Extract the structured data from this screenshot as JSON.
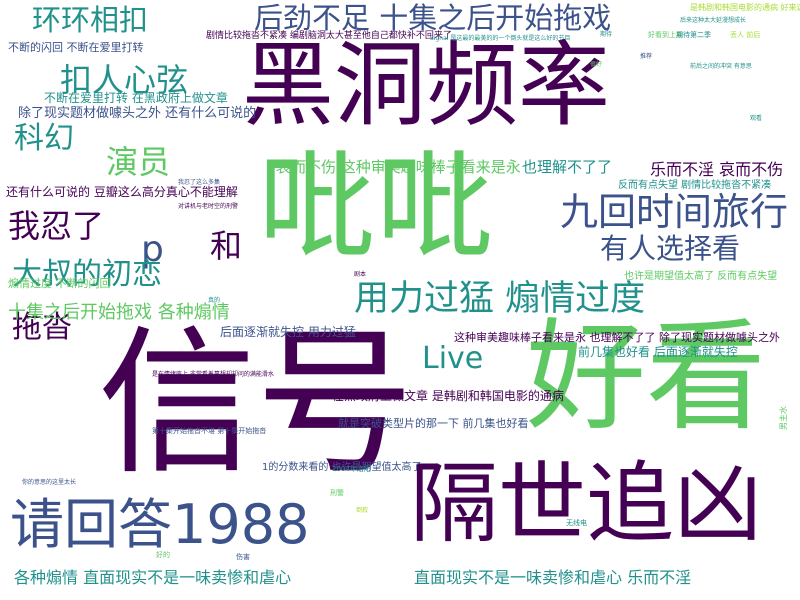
{
  "palette": {
    "purple": "#440154",
    "indigo": "#3b528b",
    "teal": "#21918c",
    "green": "#5ec962",
    "lime": "#aadc32"
  },
  "words": [
    {
      "text": "信号",
      "color": "#440154"
    },
    {
      "text": "好看",
      "color": "#5ec962"
    },
    {
      "text": "黑洞频率",
      "color": "#440154"
    },
    {
      "text": "吡吡",
      "color": "#5ec962"
    },
    {
      "text": "隔世追凶",
      "color": "#440154"
    },
    {
      "text": "请回答1988",
      "color": "#3b528b"
    },
    {
      "text": "九回时间旅行",
      "color": "#3b528b"
    },
    {
      "text": "用力过猛 煽情过度",
      "color": "#21918c"
    },
    {
      "text": "后劲不足 十集之后开始拖戏",
      "color": "#3b528b"
    },
    {
      "text": "环环相扣",
      "color": "#21918c"
    },
    {
      "text": "扣人心弦",
      "color": "#21918c"
    },
    {
      "text": "科幻",
      "color": "#21918c"
    },
    {
      "text": "演员",
      "color": "#5ec962"
    },
    {
      "text": "我忍了",
      "color": "#440154"
    },
    {
      "text": "p",
      "color": "#3b528b"
    },
    {
      "text": "和",
      "color": "#440154"
    },
    {
      "text": "有人选择看",
      "color": "#3b528b"
    },
    {
      "text": "大叔的初恋",
      "color": "#21918c"
    },
    {
      "text": "拖沓",
      "color": "#440154"
    },
    {
      "text": "Live",
      "color": "#21918c"
    },
    {
      "text": "十集之后开始拖戏 各种煽情",
      "color": "#5ec962"
    },
    {
      "text": "各种煽情 直面现实不是一味卖惨和虐心",
      "color": "#21918c"
    },
    {
      "text": "直面现实不是一味卖惨和虐心 乐而不淫",
      "color": "#21918c"
    },
    {
      "text": "乐而不淫 哀而不伤",
      "color": "#440154"
    },
    {
      "text": "哀而不伤 这种审美趣味棒子看来是永",
      "color": "#5ec962"
    },
    {
      "text": "也理解不了了",
      "color": "#21918c"
    },
    {
      "text": "这种审美趣味棒子看来是永 也理解不了了 除了现实题材做噱头之外",
      "color": "#440154"
    },
    {
      "text": "除了现实题材做噱头之外 还有什么可说的",
      "color": "#3b528b"
    },
    {
      "text": "还有什么可说的 豆瓣这么高分真心不能理解",
      "color": "#440154"
    },
    {
      "text": "不断的闪回 不断在爱里打转",
      "color": "#3b528b"
    },
    {
      "text": "不断在爱里打转 在黑政府上做文章",
      "color": "#21918c"
    },
    {
      "text": "后面逐渐就失控 用力过猛",
      "color": "#3b528b"
    },
    {
      "text": "前几集也好看 后面逐渐就失控",
      "color": "#21918c"
    },
    {
      "text": "在黑政府上做文章 是韩剧和韩国电影的通病",
      "color": "#440154"
    },
    {
      "text": "就是突破类型片的那一下 前几集也好看",
      "color": "#3b528b"
    },
    {
      "text": "煽情过度 不断的闪回",
      "color": "#5ec962"
    },
    {
      "text": "反而有点失望 剧情比较拖沓不紧凑",
      "color": "#21918c"
    },
    {
      "text": "也许是期望值太高了 反而有点失望",
      "color": "#5ec962"
    },
    {
      "text": "1的分数来看的 也许是期望值太高了",
      "color": "#3b528b"
    },
    {
      "text": "剧情比较拖沓不紧凑 编剧脑洞太大甚至他自己都快补不回来了",
      "color": "#440154"
    },
    {
      "text": "2004年洛阳",
      "color": "#21918c"
    },
    {
      "text": "无线电",
      "color": "#21918c"
    },
    {
      "text": "男主水",
      "color": "#5ec962"
    },
    {
      "text": "是韩剧和韩国电影的通病 好来这",
      "color": "#aadc32"
    },
    {
      "text": "Signal 是这最的最美的的一个倒头就是这么好的节目",
      "color": "#21918c"
    },
    {
      "text": "是在情绪废上 非常看着蔓想却却问的满能滑水",
      "color": "#440154"
    },
    {
      "text": "第十集开始拖沓不堪 第十集开始拖沓",
      "color": "#3b528b"
    },
    {
      "text": "后来这种太大延漫想成长",
      "color": "#21918c"
    },
    {
      "text": "你的意思的这里太长",
      "color": "#3b528b"
    },
    {
      "text": "好看到上周",
      "color": "#5ec962"
    },
    {
      "text": "期待第二季",
      "color": "#21918c"
    },
    {
      "text": "丢人 前后",
      "color": "#aadc32"
    },
    {
      "text": "前后之间的冲突 有意思",
      "color": "#21918c"
    },
    {
      "text": "对讲机与老时空的刑警",
      "color": "#440154"
    },
    {
      "text": "我忍了这么多集",
      "color": "#3b528b"
    },
    {
      "text": "刑警",
      "color": "#5ec962"
    },
    {
      "text": "期待",
      "color": "#21918c"
    },
    {
      "text": "伤害",
      "color": "#3b528b"
    },
    {
      "text": "好的",
      "color": "#5ec962"
    },
    {
      "text": "倒叙",
      "color": "#aadc32"
    },
    {
      "text": "观看",
      "color": "#21918c"
    },
    {
      "text": "推荐",
      "color": "#3b528b"
    },
    {
      "text": "剧本",
      "color": "#440154"
    },
    {
      "text": "真的",
      "color": "#21918c"
    },
    {
      "text": "很好",
      "color": "#5ec962"
    }
  ]
}
